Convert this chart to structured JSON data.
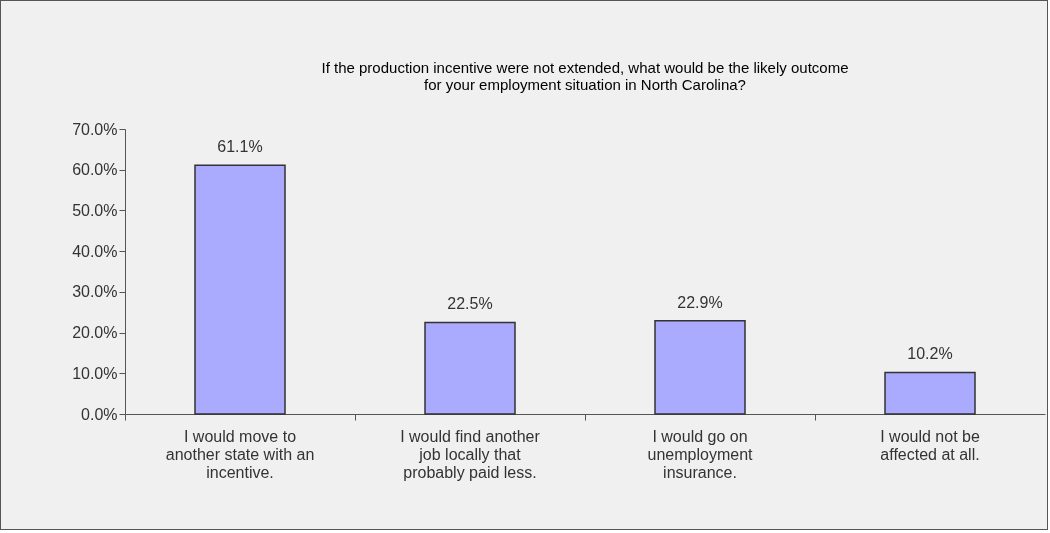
{
  "chart_data": {
    "type": "bar",
    "title": "If the production incentive were not extended, what would be the likely outcome for your employment situation in North Carolina?",
    "categories": [
      "I would move to another state with an incentive.",
      "I would find another job locally that probably paid less.",
      "I would go on unemployment insurance.",
      "I would not be affected at all."
    ],
    "values": [
      61.1,
      22.5,
      22.9,
      10.2
    ],
    "value_labels": [
      "61.1%",
      "22.5%",
      "22.9%",
      "10.2%"
    ],
    "color": "#aaaaff",
    "ylim": [
      0,
      70
    ],
    "yticks": [
      {
        "value": 0,
        "label": "0.0%"
      },
      {
        "value": 10,
        "label": "10.0%"
      },
      {
        "value": 20,
        "label": "20.0%"
      },
      {
        "value": 30,
        "label": "30.0%"
      },
      {
        "value": 40,
        "label": "40.0%"
      },
      {
        "value": 50,
        "label": "50.0%"
      },
      {
        "value": 60,
        "label": "60.0%"
      },
      {
        "value": 70,
        "label": "70.0%"
      }
    ],
    "grid": false
  }
}
